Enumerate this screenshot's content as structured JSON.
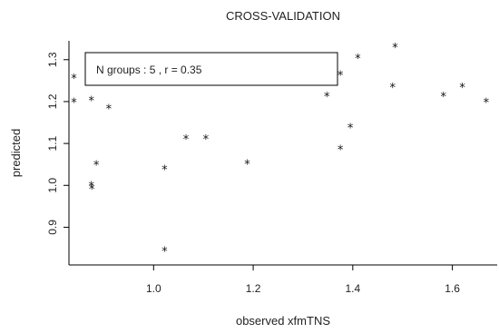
{
  "chart_data": {
    "type": "scatter",
    "title": "CROSS-VALIDATION",
    "xlabel": "observed xfmTNS",
    "ylabel": "predicted",
    "xlim": [
      0.83,
      1.69
    ],
    "ylim": [
      0.81,
      1.345
    ],
    "x_ticks": [
      1.0,
      1.2,
      1.4,
      1.6
    ],
    "y_ticks": [
      0.9,
      1.0,
      1.1,
      1.2,
      1.3
    ],
    "x_tick_labels": [
      "1.0",
      "1.2",
      "1.4",
      "1.6"
    ],
    "y_tick_labels": [
      "0.9",
      "1.0",
      "1.1",
      "1.2",
      "1.3"
    ],
    "legend_text": "N groups :  5 , r = 0.35",
    "legend_position": "top-left",
    "marker": "*",
    "points": [
      {
        "x": 0.84,
        "y": 1.265
      },
      {
        "x": 0.84,
        "y": 1.207
      },
      {
        "x": 0.875,
        "y": 1.212
      },
      {
        "x": 0.875,
        "y": 1.008
      },
      {
        "x": 0.876,
        "y": 1.001
      },
      {
        "x": 0.885,
        "y": 1.058
      },
      {
        "x": 0.91,
        "y": 1.192
      },
      {
        "x": 1.022,
        "y": 1.047
      },
      {
        "x": 1.022,
        "y": 0.852
      },
      {
        "x": 1.065,
        "y": 1.12
      },
      {
        "x": 1.105,
        "y": 1.12
      },
      {
        "x": 1.188,
        "y": 1.06
      },
      {
        "x": 1.348,
        "y": 1.222
      },
      {
        "x": 1.375,
        "y": 1.272
      },
      {
        "x": 1.375,
        "y": 1.095
      },
      {
        "x": 1.395,
        "y": 1.147
      },
      {
        "x": 1.41,
        "y": 1.313
      },
      {
        "x": 1.48,
        "y": 1.243
      },
      {
        "x": 1.485,
        "y": 1.338
      },
      {
        "x": 1.582,
        "y": 1.222
      },
      {
        "x": 1.62,
        "y": 1.243
      },
      {
        "x": 1.668,
        "y": 1.208
      }
    ]
  }
}
